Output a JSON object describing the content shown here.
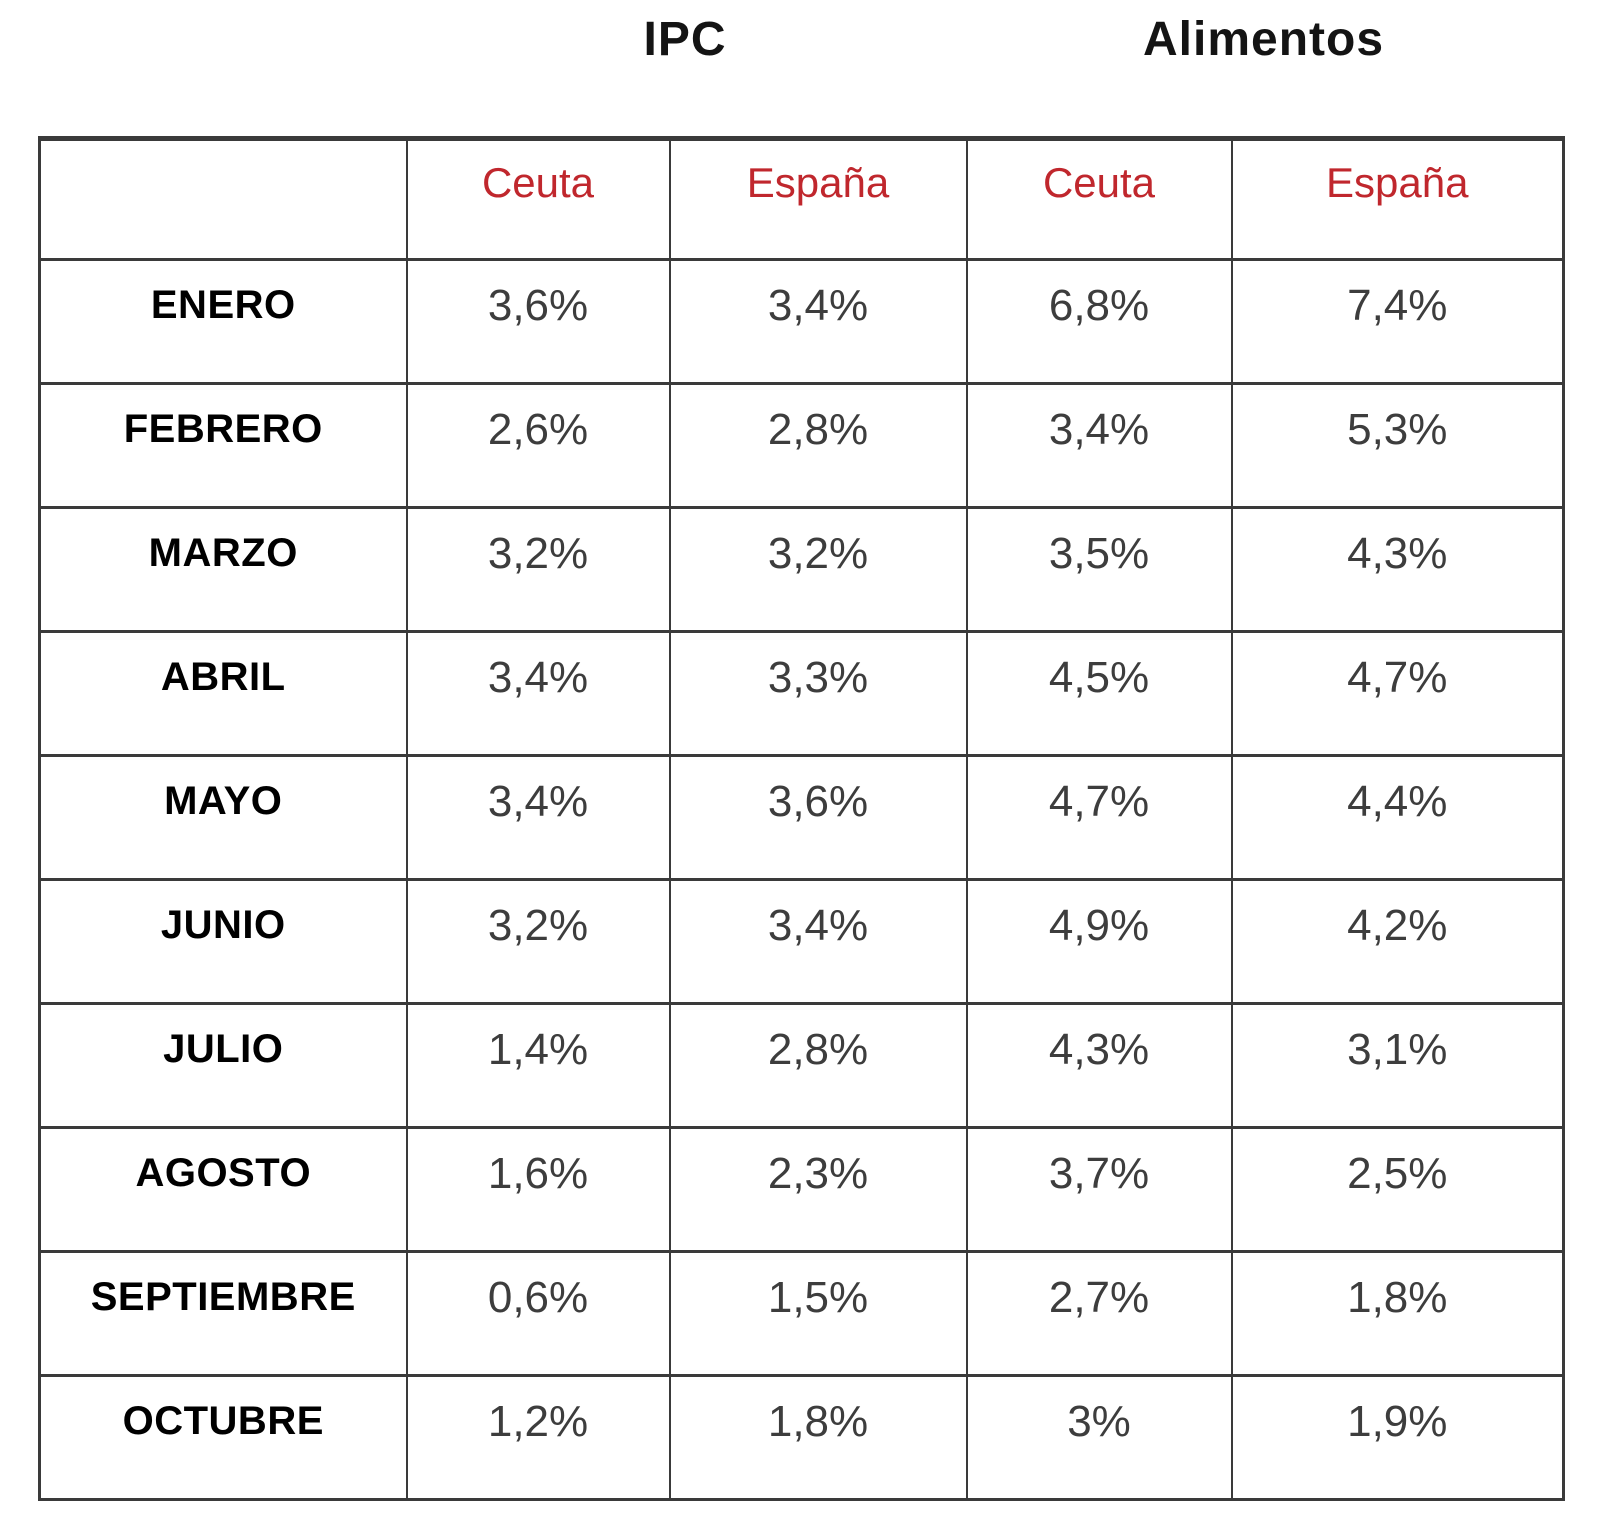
{
  "titles": {
    "ipc": "IPC",
    "alimentos": "Alimentos"
  },
  "table": {
    "corner": "",
    "column_headers": [
      "Ceuta",
      "España",
      "Ceuta",
      "España"
    ],
    "rows": [
      {
        "month": "ENERO",
        "values": [
          "3,6%",
          "3,4%",
          "6,8%",
          "7,4%"
        ]
      },
      {
        "month": "FEBRERO",
        "values": [
          "2,6%",
          "2,8%",
          "3,4%",
          "5,3%"
        ]
      },
      {
        "month": "MARZO",
        "values": [
          "3,2%",
          "3,2%",
          "3,5%",
          "4,3%"
        ]
      },
      {
        "month": "ABRIL",
        "values": [
          "3,4%",
          "3,3%",
          "4,5%",
          "4,7%"
        ]
      },
      {
        "month": "MAYO",
        "values": [
          "3,4%",
          "3,6%",
          "4,7%",
          "4,4%"
        ]
      },
      {
        "month": "JUNIO",
        "values": [
          "3,2%",
          "3,4%",
          "4,9%",
          "4,2%"
        ]
      },
      {
        "month": "JULIO",
        "values": [
          "1,4%",
          "2,8%",
          "4,3%",
          "3,1%"
        ]
      },
      {
        "month": "AGOSTO",
        "values": [
          "1,6%",
          "2,3%",
          "3,7%",
          "2,5%"
        ]
      },
      {
        "month": "SEPTIEMBRE",
        "values": [
          "0,6%",
          "1,5%",
          "2,7%",
          "1,8%"
        ]
      },
      {
        "month": "OCTUBRE",
        "values": [
          "1,2%",
          "1,8%",
          "3%",
          "1,9%"
        ]
      }
    ]
  },
  "colors": {
    "header_text": "#c0272d",
    "month_text": "#000000",
    "value_text": "#3d3d3d",
    "border": "#3a3a3a",
    "title_text": "#141414",
    "background": "#ffffff"
  },
  "chart_data": {
    "type": "table",
    "title": "",
    "column_groups": [
      "IPC",
      "Alimentos"
    ],
    "columns": [
      "IPC Ceuta",
      "IPC España",
      "Alimentos Ceuta",
      "Alimentos España"
    ],
    "categories": [
      "ENERO",
      "FEBRERO",
      "MARZO",
      "ABRIL",
      "MAYO",
      "JUNIO",
      "JULIO",
      "AGOSTO",
      "SEPTIEMBRE",
      "OCTUBRE"
    ],
    "series": [
      {
        "name": "IPC Ceuta",
        "values": [
          3.6,
          2.6,
          3.2,
          3.4,
          3.4,
          3.2,
          1.4,
          1.6,
          0.6,
          1.2
        ]
      },
      {
        "name": "IPC España",
        "values": [
          3.4,
          2.8,
          3.2,
          3.3,
          3.6,
          3.4,
          2.8,
          2.3,
          1.5,
          1.8
        ]
      },
      {
        "name": "Alimentos Ceuta",
        "values": [
          6.8,
          3.4,
          3.5,
          4.5,
          4.7,
          4.9,
          4.3,
          3.7,
          2.7,
          3.0
        ]
      },
      {
        "name": "Alimentos España",
        "values": [
          7.4,
          5.3,
          4.3,
          4.7,
          4.4,
          4.2,
          3.1,
          2.5,
          1.8,
          1.9
        ]
      }
    ],
    "unit": "%",
    "notes": "Values shown with Spanish decimal commas; grid table with red region sub-headers"
  }
}
